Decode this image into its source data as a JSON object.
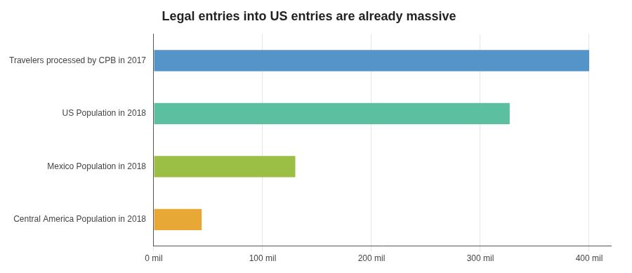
{
  "chart_data": {
    "type": "bar",
    "orientation": "horizontal",
    "title": "Legal entries into US entries are already massive",
    "categories": [
      "Central America Population in 2018",
      "Mexico Population in 2018",
      "US Population in 2018",
      "Travelers processed by CPB in 2017"
    ],
    "values": [
      44,
      130,
      327,
      400
    ],
    "colors": [
      "#E8A835",
      "#9BBF45",
      "#5BBFA0",
      "#5594C8"
    ],
    "xlim": [
      0,
      420
    ],
    "xticks": [
      {
        "value": 0,
        "label": "0 mil"
      },
      {
        "value": 100,
        "label": "100 mil"
      },
      {
        "value": 200,
        "label": "200 mil"
      },
      {
        "value": 300,
        "label": "300 mil"
      },
      {
        "value": 400,
        "label": "400 mil"
      }
    ],
    "grid": true
  }
}
